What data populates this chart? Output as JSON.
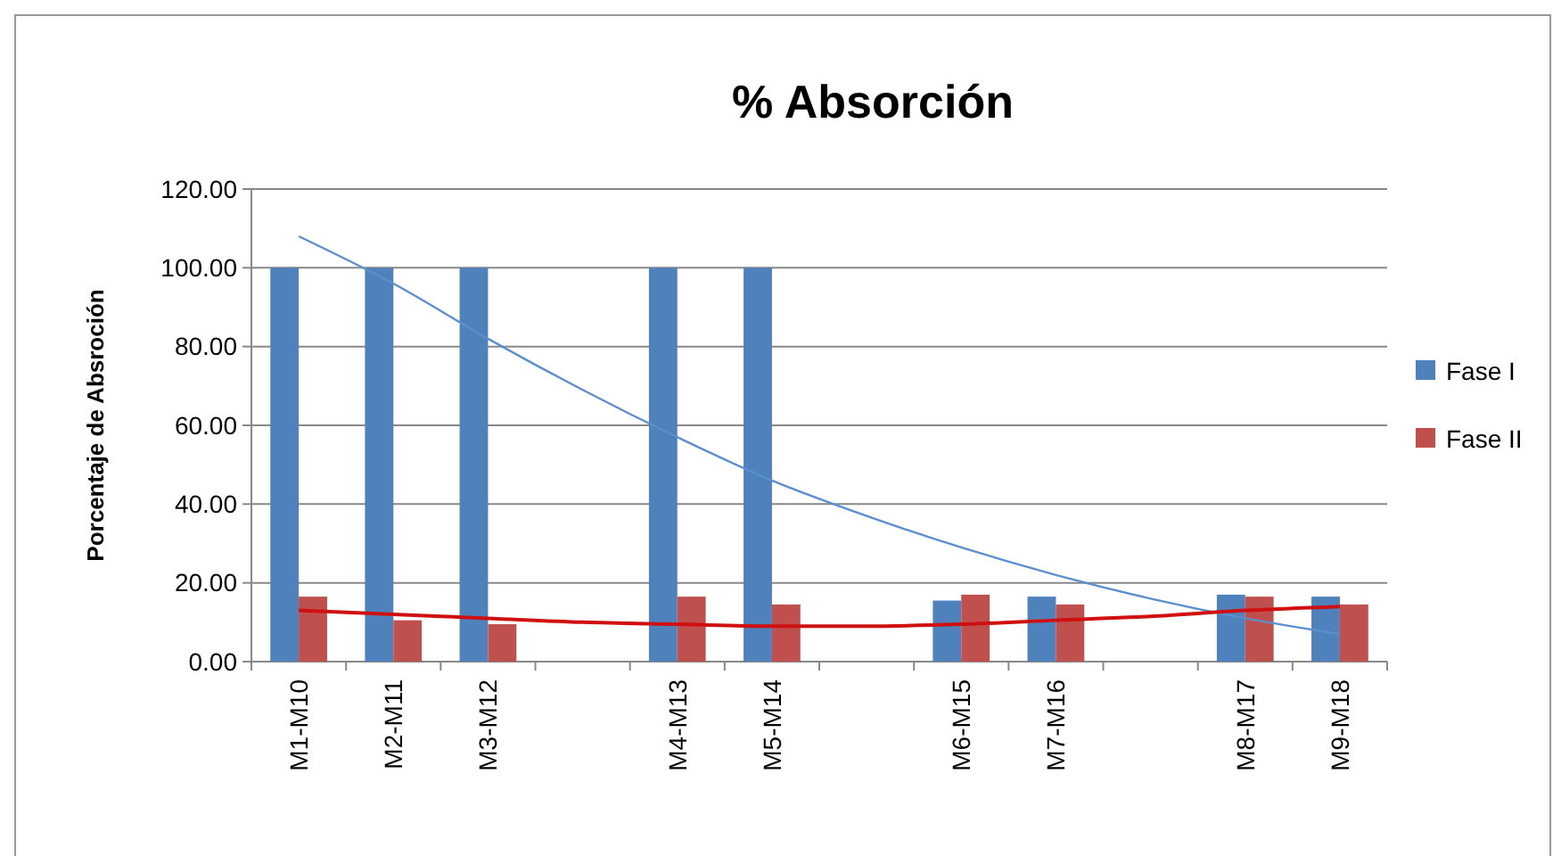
{
  "chart_data": {
    "type": "bar",
    "title": "% Absorción",
    "ylabel": "Porcentaje de Absroción",
    "categories": [
      "M1-M10",
      "M2-M11",
      "M3-M12",
      null,
      "M4-M13",
      "M5-M14",
      null,
      "M6-M15",
      "M7-M16",
      null,
      "M8-M17",
      "M9-M18"
    ],
    "series": [
      {
        "name": "Fase I",
        "color": "#4f81bd",
        "values": [
          100,
          100,
          100,
          null,
          100,
          100,
          null,
          15.5,
          16.5,
          null,
          17,
          16.5
        ]
      },
      {
        "name": "Fase II",
        "color": "#c0504d",
        "values": [
          16.5,
          10.5,
          9.5,
          null,
          16.5,
          14.5,
          null,
          17,
          14.5,
          null,
          16.5,
          14.5
        ]
      },
      {
        "type": "line",
        "color": "#5b8fd0",
        "values": [
          108,
          96,
          82,
          69,
          57,
          46,
          37,
          29,
          22,
          16,
          11,
          7
        ]
      },
      {
        "type": "line",
        "color": "#d01010",
        "values": [
          13,
          12,
          11,
          10,
          9.5,
          9,
          9,
          9.5,
          10.5,
          11.5,
          13,
          14
        ]
      }
    ],
    "ylim": [
      0,
      120
    ],
    "yticks": [
      {
        "value": 0,
        "label": "0.00"
      },
      {
        "value": 20,
        "label": "20.00"
      },
      {
        "value": 40,
        "label": "40.00"
      },
      {
        "value": 60,
        "label": "60.00"
      },
      {
        "value": 80,
        "label": "80.00"
      },
      {
        "value": 100,
        "label": "100.00"
      },
      {
        "value": 120,
        "label": "120.00"
      }
    ],
    "grid": "y",
    "legend": "right"
  }
}
